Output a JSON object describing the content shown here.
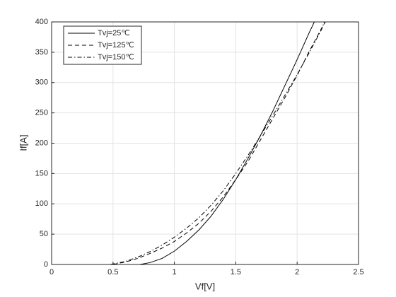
{
  "chart_data": {
    "type": "line",
    "xlabel": "Vf[V]",
    "ylabel": "If[A]",
    "xlim": [
      0,
      2.5
    ],
    "xticks": [
      0,
      0.5,
      1,
      1.5,
      2,
      2.5
    ],
    "ylim": [
      0,
      400
    ],
    "yticks": [
      0,
      50,
      100,
      150,
      200,
      250,
      300,
      350,
      400
    ],
    "grid": true,
    "legend": "upper-left",
    "series": [
      {
        "name": "Tvj=25℃",
        "color": "#000000",
        "linestyle": "solid",
        "x": [
          0.72,
          0.8,
          0.9,
          1.0,
          1.1,
          1.2,
          1.3,
          1.4,
          1.5,
          1.6,
          1.7,
          1.8,
          1.9,
          2.0,
          2.1,
          2.14
        ],
        "values": [
          0,
          3,
          10,
          22,
          38,
          57,
          80,
          108,
          140,
          175,
          212,
          252,
          295,
          338,
          383,
          400
        ]
      },
      {
        "name": "Tvj=125℃",
        "color": "#000000",
        "linestyle": "dashed",
        "x": [
          0.5,
          0.6,
          0.7,
          0.8,
          0.9,
          1.0,
          1.1,
          1.2,
          1.3,
          1.4,
          1.5,
          1.6,
          1.7,
          1.8,
          1.9,
          2.0,
          2.1,
          2.2,
          2.23
        ],
        "values": [
          0,
          4,
          10,
          18,
          27,
          38,
          52,
          68,
          88,
          112,
          140,
          170,
          205,
          240,
          275,
          312,
          352,
          390,
          400
        ]
      },
      {
        "name": "Tvj=150℃",
        "color": "#000000",
        "linestyle": "dashdot",
        "x": [
          0.48,
          0.6,
          0.7,
          0.8,
          0.9,
          1.0,
          1.1,
          1.2,
          1.3,
          1.4,
          1.5,
          1.6,
          1.7,
          1.8,
          1.9,
          2.0,
          2.1,
          2.2,
          2.22
        ],
        "values": [
          0,
          5,
          12,
          21,
          32,
          45,
          60,
          77,
          98,
          122,
          150,
          180,
          212,
          245,
          279,
          313,
          350,
          388,
          400
        ]
      }
    ]
  }
}
